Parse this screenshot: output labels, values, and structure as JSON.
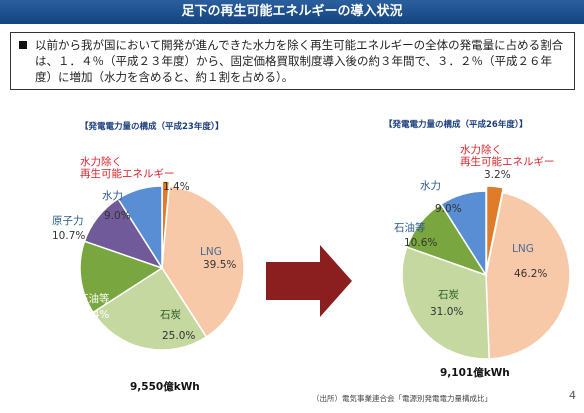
{
  "header": {
    "title": "足下の再生可能エネルギーの導入状況"
  },
  "intro": {
    "text": "以前から我が国において開発が進んできた水力を除く再生可能エネルギーの全体の発電量に占める割合は、１．４％（平成２３年度）から、固定価格買取制度導入後の約３年間で、３．２％（平成２６年度）に増加（水力を含めると、約１割を占める）。"
  },
  "chart_data": [
    {
      "type": "pie",
      "title": "【発電電力量の構成（平成23年度）】",
      "total": "9,550億kWh",
      "slices": [
        {
          "label": "LNG",
          "value": 39.5,
          "display": "39.5%",
          "color": "#f8c9a8"
        },
        {
          "label": "石炭",
          "value": 25.0,
          "display": "25.0%",
          "color": "#c4d8a0"
        },
        {
          "label": "石油等",
          "value": 14.4,
          "display": "14.4%",
          "color": "#7aa640"
        },
        {
          "label": "原子力",
          "value": 10.7,
          "display": "10.7%",
          "color": "#705a9a"
        },
        {
          "label": "水力",
          "value": 9.0,
          "display": "9.0%",
          "color": "#5a8ed4"
        },
        {
          "label": "水力除く再生可能エネルギー",
          "label_lines": [
            "水力除く",
            "再生可能エネルギー"
          ],
          "value": 1.4,
          "display": "1.4%",
          "color": "#e07b2a"
        }
      ]
    },
    {
      "type": "pie",
      "title": "【発電電力量の構成（平成26年度）】",
      "total": "9,101億kWh",
      "slices": [
        {
          "label": "LNG",
          "value": 46.2,
          "display": "46.2%",
          "color": "#f8c9a8"
        },
        {
          "label": "石炭",
          "value": 31.0,
          "display": "31.0%",
          "color": "#c4d8a0"
        },
        {
          "label": "石油等",
          "value": 10.6,
          "display": "10.6%",
          "color": "#7aa640"
        },
        {
          "label": "水力",
          "value": 9.0,
          "display": "9.0%",
          "color": "#5a8ed4"
        },
        {
          "label": "水力除く再生可能エネルギー",
          "label_lines": [
            "水力除く",
            "再生可能エネルギー"
          ],
          "value": 3.2,
          "display": "3.2%",
          "color": "#e07b2a"
        }
      ]
    }
  ],
  "arrow": {
    "color": "#8b1f1f"
  },
  "footer": {
    "source": "（出所）電気事業連合会「電源別発電電力量構成比」",
    "page_number": "4"
  }
}
